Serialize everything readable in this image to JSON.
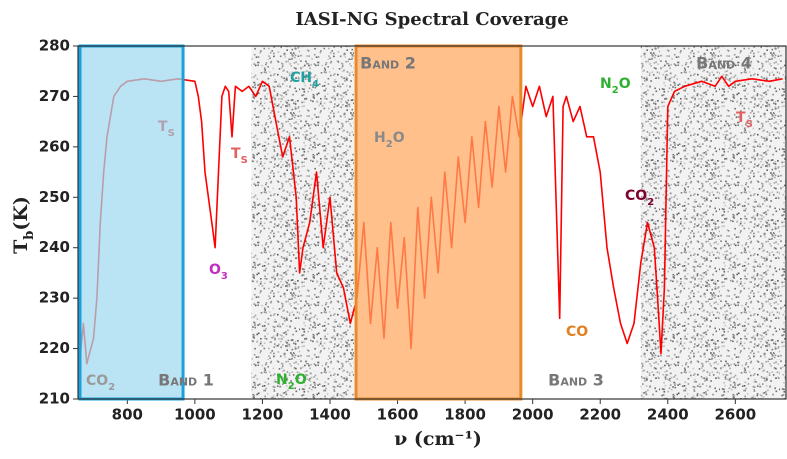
{
  "chart_data": {
    "type": "line",
    "title": "IASI-NG Spectral Coverage",
    "x_label": "ν (cm⁻¹)",
    "y_label": {
      "main": "T",
      "sub": "b",
      "tail": "(K)"
    },
    "xlim": [
      654,
      2750
    ],
    "ylim": [
      210,
      280
    ],
    "xticks": [
      800,
      1000,
      1200,
      1400,
      1600,
      1800,
      2000,
      2200,
      2400,
      2600
    ],
    "yticks": [
      210,
      220,
      230,
      240,
      250,
      260,
      270,
      280
    ],
    "series": [
      {
        "color": "#ff0000",
        "x": [
          660,
          670,
          680,
          700,
          710,
          720,
          730,
          740,
          760,
          780,
          800,
          850,
          900,
          950,
          1000,
          1010,
          1020,
          1030,
          1040,
          1050,
          1060,
          1070,
          1080,
          1090,
          1100,
          1110,
          1120,
          1140,
          1160,
          1180,
          1200,
          1220,
          1240,
          1260,
          1280,
          1300,
          1310,
          1320,
          1340,
          1360,
          1380,
          1400,
          1420,
          1440,
          1460,
          1480,
          1500,
          1520,
          1540,
          1560,
          1580,
          1600,
          1620,
          1640,
          1660,
          1680,
          1700,
          1720,
          1740,
          1760,
          1780,
          1800,
          1820,
          1840,
          1860,
          1880,
          1900,
          1920,
          1940,
          1960,
          1980,
          2000,
          2020,
          2040,
          2060,
          2080,
          2090,
          2100,
          2120,
          2140,
          2160,
          2180,
          2200,
          2220,
          2240,
          2260,
          2280,
          2300,
          2320,
          2340,
          2360,
          2370,
          2380,
          2390,
          2400,
          2420,
          2450,
          2500,
          2540,
          2560,
          2580,
          2600,
          2650,
          2700,
          2740
        ],
        "values": [
          218,
          225,
          217,
          222,
          230,
          245,
          255,
          262,
          270,
          272,
          273,
          273.5,
          273,
          273.5,
          273,
          270,
          265,
          255,
          250,
          245,
          240,
          255,
          270,
          272,
          271,
          262,
          272,
          271,
          272,
          270,
          273,
          272,
          265,
          258,
          262,
          250,
          235,
          240,
          245,
          255,
          240,
          250,
          235,
          232,
          225,
          230,
          245,
          225,
          240,
          222,
          245,
          228,
          242,
          220,
          248,
          230,
          250,
          235,
          255,
          240,
          258,
          245,
          262,
          248,
          265,
          252,
          268,
          255,
          270,
          262,
          272,
          268,
          272,
          266,
          270,
          226,
          268,
          270,
          265,
          268,
          262,
          262,
          255,
          240,
          232,
          225,
          221,
          225,
          237,
          245,
          240,
          230,
          219,
          232,
          268,
          271,
          272,
          273,
          272,
          274,
          272,
          273,
          273.5,
          273,
          273.5
        ]
      }
    ],
    "boxes": [
      {
        "range": [
          650,
          965
        ],
        "fill": "#9fd9ee",
        "stroke": "#19a0dd"
      },
      {
        "range": [
          1477,
          1965
        ],
        "fill": "#ffa860",
        "stroke": "#e88a2a"
      }
    ],
    "shaded_regions": [
      [
        1167,
        1471
      ],
      [
        2320,
        2750
      ]
    ],
    "band_labels": [
      "Band 1",
      "Band 2",
      "Band 3",
      "Band 4"
    ],
    "annotations": [
      {
        "text": "T",
        "sub": "S",
        "color": "#b0a0b0"
      },
      {
        "text": "T",
        "sub": "S",
        "color": "#e06060"
      },
      {
        "text": "O",
        "sub": "3",
        "color": "#c030c0"
      },
      {
        "text": "CH",
        "sub": "4",
        "color": "#20a0a0"
      },
      {
        "text": "N",
        "sub": "2",
        "tail": "O",
        "color": "#30b030"
      },
      {
        "text": "H",
        "sub": "2",
        "tail": "O",
        "color": "#8a8a8a"
      },
      {
        "text": "CO",
        "color": "#e08020"
      },
      {
        "text": "N",
        "sub": "2",
        "tail": "O",
        "color": "#30b030"
      },
      {
        "text": "CO",
        "sub": "2",
        "color": "#800030"
      },
      {
        "text": "T",
        "sub": "S",
        "color": "#e06060"
      },
      {
        "text": "CO",
        "sub": "2",
        "color": "#9a9a9a"
      }
    ]
  }
}
